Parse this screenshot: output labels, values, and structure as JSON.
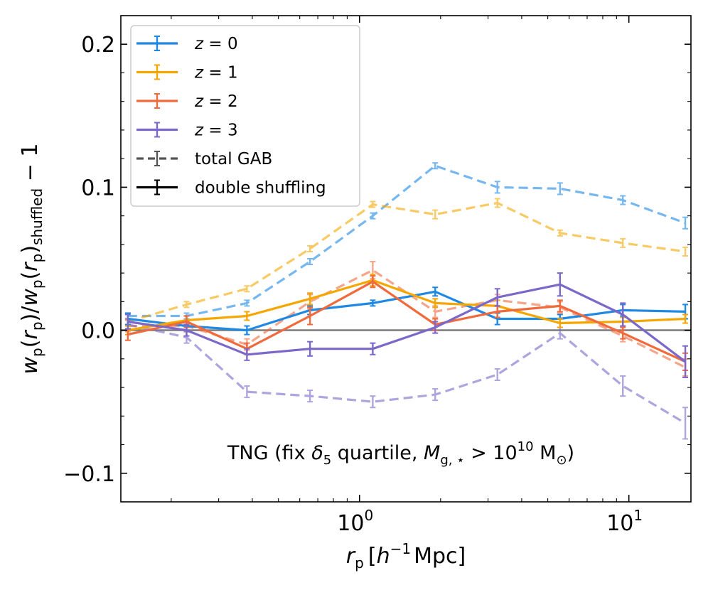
{
  "chart_data": {
    "type": "line",
    "title": "",
    "xlabel": "r_p [h^-1 Mpc]",
    "ylabel": "w_p(r_p)/w_p(r_p)_shuffled − 1",
    "x_scale": "log",
    "xlim": [
      0.13,
      17
    ],
    "ylim": [
      -0.12,
      0.22
    ],
    "x_ticks": [
      {
        "value": 1,
        "base": "10",
        "exp": "0"
      },
      {
        "value": 10,
        "base": "10",
        "exp": "1"
      }
    ],
    "y_ticks": [
      {
        "value": -0.1,
        "label": "−0.1"
      },
      {
        "value": 0.0,
        "label": "0.0"
      },
      {
        "value": 0.1,
        "label": "0.1"
      },
      {
        "value": 0.2,
        "label": "0.2"
      }
    ],
    "reference_line": {
      "y": 0,
      "color": "#808080"
    },
    "annotation": "TNG (fix δ5 quartile, Mg,⋆ > 10^10 M⊙)",
    "legend_position": "upper-left",
    "x": [
      0.138,
      0.228,
      0.382,
      0.655,
      1.12,
      1.91,
      3.25,
      5.55,
      9.5,
      16.2
    ],
    "series": [
      {
        "name": "z = 0",
        "label_var": "z",
        "label_val": "0",
        "color": "#1e88e5",
        "style": "solid",
        "values": [
          0.008,
          0.003,
          0.0,
          0.014,
          0.019,
          0.027,
          0.008,
          0.008,
          0.014,
          0.013
        ],
        "errors": [
          0.004,
          0.003,
          0.003,
          0.003,
          0.002,
          0.003,
          0.004,
          0.003,
          0.004,
          0.005
        ]
      },
      {
        "name": "z = 1",
        "label_var": "z",
        "label_val": "1",
        "color": "#f5a700",
        "style": "solid",
        "values": [
          0.0,
          0.007,
          0.01,
          0.022,
          0.035,
          0.019,
          0.017,
          0.005,
          0.006,
          0.008
        ],
        "errors": [
          0.003,
          0.003,
          0.003,
          0.004,
          0.004,
          0.003,
          0.004,
          0.003,
          0.003,
          0.003
        ]
      },
      {
        "name": "z = 2",
        "label_var": "z",
        "label_val": "2",
        "color": "#f06a3c",
        "style": "solid",
        "values": [
          -0.003,
          0.006,
          -0.013,
          0.01,
          0.034,
          0.004,
          0.013,
          0.017,
          -0.002,
          -0.022
        ],
        "errors": [
          0.004,
          0.004,
          0.004,
          0.006,
          0.004,
          0.004,
          0.004,
          0.004,
          0.004,
          0.006
        ]
      },
      {
        "name": "z = 3",
        "label_var": "z",
        "label_val": "3",
        "color": "#7b68c8",
        "style": "solid",
        "values": [
          0.006,
          0.0,
          -0.017,
          -0.013,
          -0.013,
          0.002,
          0.023,
          0.032,
          0.011,
          -0.022
        ],
        "errors": [
          0.005,
          0.004,
          0.004,
          0.005,
          0.004,
          0.004,
          0.006,
          0.008,
          0.008,
          0.011
        ]
      },
      {
        "name": "z = 0 total GAB",
        "color": "#1e88e5",
        "style": "dashed",
        "values": [
          0.01,
          0.01,
          0.019,
          0.048,
          0.08,
          0.115,
          0.1,
          0.099,
          0.091,
          0.075
        ],
        "errors": [
          0.002,
          0.002,
          0.002,
          0.002,
          0.002,
          0.002,
          0.004,
          0.004,
          0.003,
          0.004
        ]
      },
      {
        "name": "z = 1 total GAB",
        "color": "#f5a700",
        "style": "dashed",
        "values": [
          0.006,
          0.018,
          0.029,
          0.057,
          0.088,
          0.081,
          0.089,
          0.068,
          0.061,
          0.055
        ],
        "errors": [
          0.002,
          0.002,
          0.002,
          0.002,
          0.002,
          0.003,
          0.003,
          0.002,
          0.003,
          0.003
        ]
      },
      {
        "name": "z = 2 total GAB",
        "color": "#f06a3c",
        "style": "dashed",
        "values": [
          0.003,
          0.003,
          -0.01,
          0.02,
          0.042,
          0.013,
          0.021,
          0.016,
          -0.004,
          -0.026
        ],
        "errors": [
          0.004,
          0.004,
          0.004,
          0.005,
          0.006,
          0.004,
          0.004,
          0.004,
          0.004,
          0.006
        ]
      },
      {
        "name": "z = 3 total GAB",
        "color": "#7b68c8",
        "style": "dashed",
        "values": [
          0.004,
          -0.005,
          -0.043,
          -0.046,
          -0.05,
          -0.045,
          -0.031,
          -0.002,
          -0.039,
          -0.065
        ],
        "errors": [
          0.004,
          0.004,
          0.004,
          0.004,
          0.004,
          0.004,
          0.004,
          0.004,
          0.007,
          0.011
        ]
      }
    ],
    "legend": [
      {
        "label_var": "z",
        "label_val": "0",
        "color": "#1e88e5",
        "style": "solid"
      },
      {
        "label_var": "z",
        "label_val": "1",
        "color": "#f5a700",
        "style": "solid"
      },
      {
        "label_var": "z",
        "label_val": "2",
        "color": "#f06a3c",
        "style": "solid"
      },
      {
        "label_var": "z",
        "label_val": "3",
        "color": "#7b68c8",
        "style": "solid"
      },
      {
        "label": "total GAB",
        "color": "#555555",
        "style": "dashed"
      },
      {
        "label": "double shuffling",
        "color": "#000000",
        "style": "solid"
      }
    ]
  }
}
